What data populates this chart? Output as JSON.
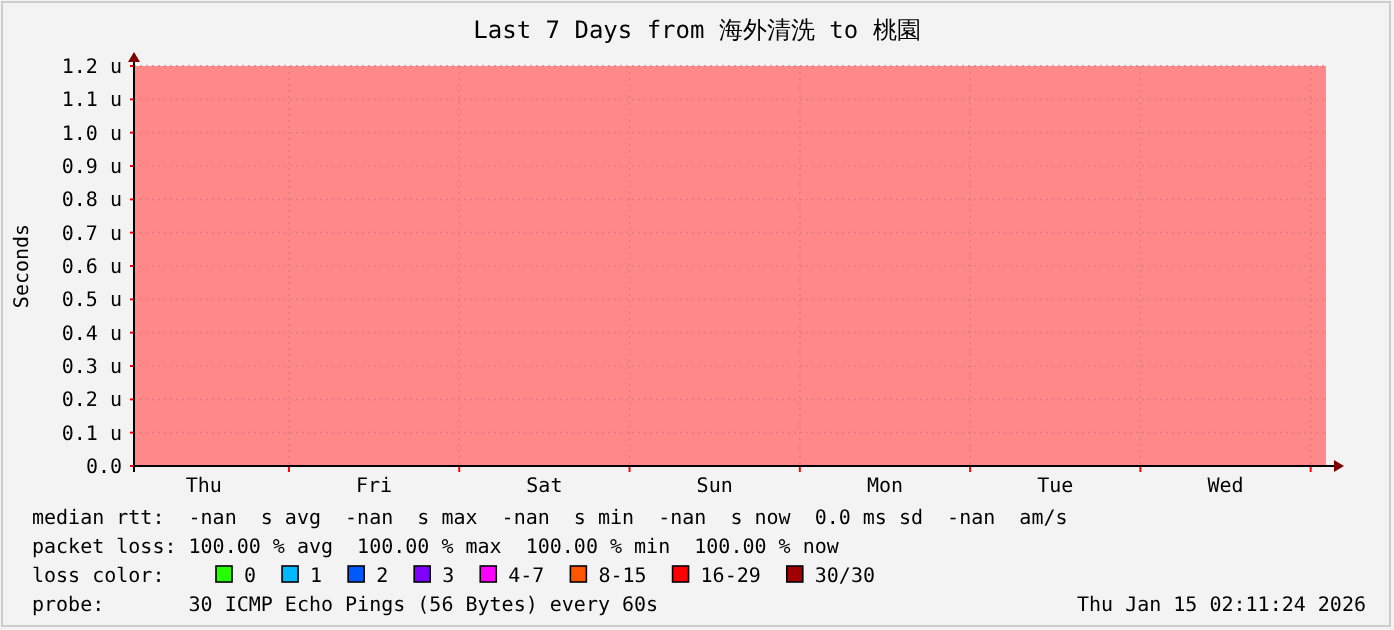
{
  "chart_data": {
    "type": "line",
    "title": "Last 7 Days from 海外清洗 to 桃園",
    "ylabel": "Seconds",
    "categories": [
      "Thu",
      "Fri",
      "Sat",
      "Sun",
      "Mon",
      "Tue",
      "Wed"
    ],
    "ylim": [
      0,
      1.2
    ],
    "yticks": [
      {
        "value": 0,
        "label": "0.0"
      },
      {
        "value": 0.1,
        "label": "0.1 u"
      },
      {
        "value": 0.2,
        "label": "0.2 u"
      },
      {
        "value": 0.3,
        "label": "0.3 u"
      },
      {
        "value": 0.4,
        "label": "0.4 u"
      },
      {
        "value": 0.5,
        "label": "0.5 u"
      },
      {
        "value": 0.6,
        "label": "0.6 u"
      },
      {
        "value": 0.7,
        "label": "0.7 u"
      },
      {
        "value": 0.8,
        "label": "0.8 u"
      },
      {
        "value": 0.9,
        "label": "0.9 u"
      },
      {
        "value": 1.0,
        "label": "1.0 u"
      },
      {
        "value": 1.1,
        "label": "1.1 u"
      },
      {
        "value": 1.2,
        "label": "1.2 u"
      }
    ],
    "grid": true,
    "bands": [
      {
        "axis": "y",
        "from": 0,
        "to": 1.2,
        "color": "#ff8888"
      }
    ],
    "legend": "bottom",
    "legend_title": "loss color:",
    "series": [
      {
        "name": "0",
        "color": "#26ff00",
        "values": [
          null,
          null,
          null,
          null,
          null,
          null,
          null
        ]
      },
      {
        "name": "1",
        "color": "#00b8ff",
        "values": [
          null,
          null,
          null,
          null,
          null,
          null,
          null
        ]
      },
      {
        "name": "2",
        "color": "#0059ff",
        "values": [
          null,
          null,
          null,
          null,
          null,
          null,
          null
        ]
      },
      {
        "name": "3",
        "color": "#7e00ff",
        "values": [
          null,
          null,
          null,
          null,
          null,
          null,
          null
        ]
      },
      {
        "name": "4-7",
        "color": "#ff00ff",
        "values": [
          null,
          null,
          null,
          null,
          null,
          null,
          null
        ]
      },
      {
        "name": "8-15",
        "color": "#ff5500",
        "values": [
          null,
          null,
          null,
          null,
          null,
          null,
          null
        ]
      },
      {
        "name": "16-29",
        "color": "#ff0000",
        "values": [
          null,
          null,
          null,
          null,
          null,
          null,
          null
        ]
      },
      {
        "name": "30/30",
        "color": "#a10000",
        "values": [
          null,
          null,
          null,
          null,
          null,
          null,
          null
        ]
      }
    ],
    "annotations": [
      "median rtt:  -nan  s avg  -nan  s max  -nan  s min  -nan  s now  0.0 ms sd  -nan  am/s",
      "packet loss: 100.00 % avg  100.00 % max  100.00 % min  100.00 % now",
      "probe:       30 ICMP Echo Pings (56 Bytes) every 60s",
      "Thu Jan 15 02:11:24 2026"
    ]
  }
}
